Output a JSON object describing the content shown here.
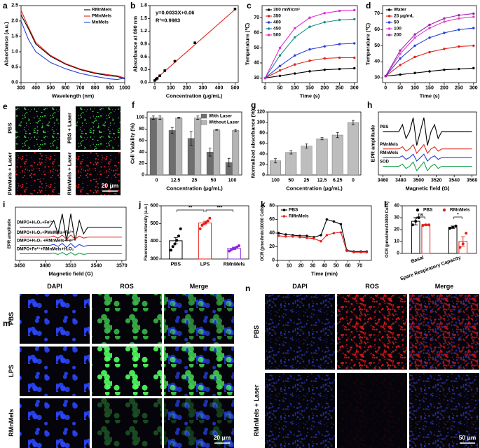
{
  "chart_data": [
    {
      "label": "a",
      "type": "line",
      "xlabel": "Wavelength (nm)",
      "ylabel": "Absorbance (a.u.)",
      "x": [
        300,
        350,
        400,
        500,
        600,
        700,
        800,
        900,
        950,
        1000
      ],
      "xlim": [
        300,
        1000
      ],
      "xticks": [
        300,
        400,
        500,
        600,
        700,
        800,
        900,
        1000
      ],
      "ylim": [
        0,
        2.5
      ],
      "yticks": [
        {
          "value": 0,
          "label": "0.0"
        },
        {
          "value": 0.5,
          "label": "0.5"
        },
        {
          "value": 1,
          "label": "1.0"
        },
        {
          "value": 1.5,
          "label": "1.5"
        },
        {
          "value": 2,
          "label": "2.0"
        },
        {
          "value": 2.5,
          "label": "2.5"
        }
      ],
      "legend": "upper right",
      "series": [
        {
          "name": "RMnMels",
          "color": "#000000",
          "values": [
            2.2,
            1.75,
            1.25,
            0.85,
            0.6,
            0.42,
            0.3,
            0.22,
            0.2,
            0.12
          ]
        },
        {
          "name": "PMnMels",
          "color": "#e32119",
          "values": [
            2.35,
            1.8,
            1.3,
            0.88,
            0.62,
            0.44,
            0.32,
            0.25,
            0.22,
            0.15
          ]
        },
        {
          "name": "MnMels",
          "color": "#2b3fd6",
          "values": [
            2.0,
            1.4,
            1.0,
            0.65,
            0.45,
            0.3,
            0.2,
            0.12,
            0.1,
            0.15
          ]
        }
      ]
    },
    {
      "label": "b",
      "type": "scatter",
      "xlabel": "Concentration (μg/mL)",
      "ylabel": "Absorbance at 690 nm",
      "xlim": [
        -30,
        520
      ],
      "xticks": [
        0,
        100,
        200,
        300,
        400,
        500
      ],
      "ylim": [
        0,
        1.8
      ],
      "yticks": [
        {
          "value": 0,
          "label": "0.0"
        },
        0.3,
        0.6,
        0.9,
        1.2,
        1.5,
        1.8
      ],
      "annotations": [
        "y=0.0033X+0.06",
        "R²=0.9983"
      ],
      "series": [
        {
          "color": "#e32119",
          "mode": "line",
          "x": [
            0,
            500
          ],
          "values": [
            0.06,
            1.71
          ]
        },
        {
          "color": "#000000",
          "mode": "markers",
          "x": [
            0,
            7.8,
            15.6,
            31.25,
            62.5,
            125,
            250,
            500
          ],
          "values": [
            0.05,
            0.08,
            0.1,
            0.16,
            0.28,
            0.5,
            0.93,
            1.72
          ]
        }
      ]
    },
    {
      "label": "c",
      "type": "line",
      "markers": true,
      "xlabel": "Time (s)",
      "ylabel": "Temperature (℃)",
      "x": [
        0,
        50,
        100,
        150,
        200,
        250,
        300
      ],
      "xlim": [
        -10,
        310
      ],
      "xticks": [
        0,
        50,
        100,
        150,
        200,
        250,
        300
      ],
      "ylim": [
        27,
        78
      ],
      "yticks": [
        30,
        40,
        50,
        60,
        70
      ],
      "legend": "upper left",
      "series": [
        {
          "name": "300 mW/cm²",
          "color": "#000000",
          "values": [
            30,
            31.5,
            33,
            34.5,
            35.5,
            36,
            36.5
          ]
        },
        {
          "name": "350",
          "color": "#e32119",
          "values": [
            30,
            35,
            39,
            41.5,
            43,
            43.5,
            43.5
          ]
        },
        {
          "name": "400",
          "color": "#2b3fd6",
          "values": [
            30,
            38,
            45,
            49,
            51,
            52.5,
            53
          ]
        },
        {
          "name": "450",
          "color": "#16908c",
          "values": [
            30,
            45,
            57,
            64,
            67,
            68.5,
            69
          ]
        },
        {
          "name": "500",
          "color": "#e22ad6",
          "values": [
            30,
            50,
            63,
            70,
            73,
            74.5,
            75
          ]
        }
      ]
    },
    {
      "label": "d",
      "type": "line",
      "markers": true,
      "xlabel": "Time (s)",
      "ylabel": "Temperature (℃)",
      "x": [
        0,
        50,
        100,
        150,
        200,
        250,
        300
      ],
      "xlim": [
        -10,
        310
      ],
      "xticks": [
        0,
        50,
        100,
        150,
        200,
        250,
        300
      ],
      "ylim": [
        27,
        75
      ],
      "yticks": [
        30,
        40,
        50,
        60,
        70
      ],
      "legend": "upper left",
      "series": [
        {
          "name": "Water",
          "color": "#000000",
          "values": [
            31,
            32,
            33,
            34,
            35,
            35.5,
            36
          ]
        },
        {
          "name": "25 μg/mL",
          "color": "#e32119",
          "values": [
            31,
            38,
            43,
            46,
            48,
            49.5,
            50
          ]
        },
        {
          "name": "50",
          "color": "#2b3fd6",
          "values": [
            31,
            42,
            50,
            55,
            58,
            60,
            61
          ]
        },
        {
          "name": "100",
          "color": "#e040c8",
          "values": [
            31,
            45,
            55,
            61,
            65,
            67,
            68
          ]
        },
        {
          "name": "200",
          "color": "#a020b0",
          "values": [
            31,
            47,
            57,
            63,
            67,
            69,
            70
          ]
        }
      ]
    },
    {
      "label": "f",
      "type": "bar",
      "xlabel": "Concentration (μg/mL)",
      "ylabel": "Cell Viability (%)",
      "categories": [
        "0",
        "12.5",
        "25",
        "50",
        "100"
      ],
      "ylim": [
        0,
        110
      ],
      "yticks": [
        0,
        20,
        40,
        60,
        80,
        100
      ],
      "legend": "upper right",
      "series": [
        {
          "name": "With Laser",
          "color": "#6e6e6e",
          "values": [
            100,
            78,
            64,
            40,
            22
          ],
          "errors": [
            3,
            5,
            12,
            7,
            7
          ]
        },
        {
          "name": "Without Laser",
          "color": "#b4b4b4",
          "values": [
            100,
            100,
            100,
            79,
            78
          ],
          "errors": [
            3,
            1,
            3,
            1,
            2
          ]
        }
      ]
    },
    {
      "label": "g",
      "type": "bar",
      "xlabel": "Concentration (μg/mL)",
      "ylabel": "Normalized absorbance (%)",
      "categories": [
        "100",
        "50",
        "25",
        "12.5",
        "6.25",
        "0"
      ],
      "ylim": [
        0,
        120
      ],
      "yticks": [
        0,
        20,
        40,
        60,
        80,
        100,
        120
      ],
      "series": [
        {
          "color": "#bdbdbd",
          "values": [
            27,
            43,
            55,
            69,
            76,
            100
          ],
          "errors": [
            4,
            3,
            4,
            2,
            5,
            4
          ]
        }
      ]
    },
    {
      "label": "h",
      "type": "line",
      "legend": "inline",
      "xlabel": "Magnetic field (G)",
      "ylabel": "EPR amplitude",
      "x": [
        3460,
        3478,
        3482,
        3486,
        3490,
        3494,
        3498,
        3502,
        3506,
        3510,
        3514,
        3518,
        3522,
        3526,
        3530,
        3545,
        3560
      ],
      "xlim": [
        3455,
        3565
      ],
      "xticks": [
        3460,
        3480,
        3500,
        3520,
        3540,
        3560
      ],
      "ylim": [
        -1,
        13.5
      ],
      "series": [
        {
          "name": "PBS",
          "color": "#000000",
          "values": [
            9,
            9,
            10.6,
            7.4,
            9,
            12.2,
            5.8,
            9,
            12.2,
            5.8,
            9,
            10.6,
            7.4,
            9,
            9,
            9,
            9
          ]
        },
        {
          "name": "PMnMels",
          "color": "#e32119",
          "values": [
            5,
            5,
            5.5,
            4.5,
            5,
            6,
            4,
            5,
            6,
            4,
            5,
            5.5,
            4.5,
            5,
            5,
            5,
            5
          ]
        },
        {
          "name": "RMnMels",
          "color": "#2b3fd6",
          "values": [
            3,
            3,
            3.4,
            2.6,
            3,
            3.8,
            2.2,
            3,
            3.8,
            2.2,
            3,
            3.4,
            2.6,
            3,
            3,
            3,
            3
          ]
        },
        {
          "name": "SOD",
          "color": "#16a04a",
          "values": [
            1,
            1,
            1.5,
            0.5,
            1,
            2,
            0,
            1,
            2,
            0,
            1,
            1.5,
            0.5,
            1,
            1,
            1,
            1
          ]
        }
      ]
    },
    {
      "label": "i",
      "type": "line",
      "legend": "inline",
      "xlabel": "Magnetic field (G)",
      "ylabel": "EPR amplitude",
      "x": [
        3450,
        3485,
        3490,
        3495,
        3500,
        3505,
        3510,
        3515,
        3520,
        3525,
        3530,
        3570
      ],
      "xlim": [
        3445,
        3575
      ],
      "xticks": [
        3450,
        3480,
        3510,
        3540,
        3570
      ],
      "ylim": [
        -1,
        15
      ],
      "series": [
        {
          "name": "DMPO+H₂O₂+Fe²⁺",
          "color": "#000000",
          "values": [
            9,
            9,
            11,
            7,
            13,
            5,
            13,
            5,
            11,
            7,
            9,
            9
          ]
        },
        {
          "name": "DMPO+H₂O₂+PMnMels+Fe²⁺",
          "color": "#e32119",
          "values": [
            6,
            6,
            6.3,
            5.7,
            6.6,
            5.4,
            6.6,
            5.4,
            6.3,
            5.7,
            6,
            6
          ]
        },
        {
          "name": "DMPO+H₂O₂ +RMnMels+Fe²⁺",
          "color": "#2b3fd6",
          "values": [
            3.5,
            3.5,
            3.8,
            3.2,
            4.1,
            2.9,
            4.1,
            2.9,
            3.8,
            3.2,
            3.5,
            3.5
          ]
        },
        {
          "name": "DMPO+Fe²⁺+RMnMels+H₂O₂",
          "color": "#16a04a",
          "values": [
            1,
            1,
            1.2,
            0.8,
            1.4,
            0.6,
            1.4,
            0.6,
            1.2,
            0.8,
            1,
            1
          ]
        }
      ]
    },
    {
      "label": "j",
      "type": "dotbar",
      "ylabel": "Fluorescence intensity (a.u.)",
      "categories": [
        "PBS",
        "LPS",
        "RMnMels"
      ],
      "colors": [
        "#000000",
        "#e32119",
        "#8a2be2"
      ],
      "values": [
        403,
        503,
        360
      ],
      "errors": [
        18,
        10,
        7
      ],
      "points": [
        [
          350,
          370,
          385,
          405,
          430,
          470
        ],
        [
          470,
          490,
          500,
          505,
          515,
          530
        ],
        [
          345,
          352,
          358,
          362,
          368,
          375
        ]
      ],
      "ylim": [
        300,
        600
      ],
      "yticks": [
        300,
        400,
        500,
        600
      ],
      "significance": [
        "**",
        "***"
      ]
    },
    {
      "label": "k",
      "type": "line",
      "markers": true,
      "xlabel": "Time (min)",
      "ylabel": "OCR (pmol/min/10000 Cells)",
      "x": [
        1,
        7,
        13,
        19,
        25,
        31,
        37,
        42,
        48,
        54,
        59,
        65,
        71,
        76
      ],
      "xlim": [
        0,
        80
      ],
      "xticks": [
        0,
        10,
        20,
        30,
        40,
        50,
        60,
        70
      ],
      "ylim": [
        0,
        80
      ],
      "yticks": [
        0,
        20,
        40,
        60,
        80
      ],
      "legend": "upper left",
      "series": [
        {
          "name": "PBS",
          "color": "#000000",
          "values": [
            40,
            38,
            37,
            36,
            36,
            34,
            37,
            60,
            57,
            53,
            15,
            13,
            13,
            13
          ]
        },
        {
          "name": "RMnMels",
          "color": "#e32119",
          "values": [
            36,
            35,
            35,
            34,
            33,
            32,
            28,
            37,
            40,
            41,
            14,
            12,
            12,
            12
          ]
        }
      ]
    },
    {
      "label": "l",
      "type": "dotbar",
      "ylabel": "OCR (pmol/min/10000 Cells)",
      "categories": [
        "Basal",
        "Spare Respiratory Capacity"
      ],
      "ylim": [
        0,
        40
      ],
      "yticks": [
        0,
        10,
        20,
        30,
        40
      ],
      "legend": "upper center",
      "significance": [
        "ns",
        "*"
      ],
      "series": [
        {
          "name": "PBS",
          "color": "#000000",
          "values": [
            27,
            22
          ],
          "errors": [
            3,
            1
          ],
          "points": [
            [
              24,
              27,
              30
            ],
            [
              21,
              22,
              23
            ]
          ]
        },
        {
          "name": "RMnMels",
          "color": "#e32119",
          "values": [
            24,
            10
          ],
          "errors": [
            0.5,
            4
          ],
          "points": [
            [
              23.5,
              24,
              24
            ],
            [
              5,
              8,
              17
            ]
          ]
        }
      ]
    }
  ],
  "image_panels": [
    {
      "label": "e",
      "tiles": [
        "PBS",
        "PBS + Laser",
        "PMnMels + Laser",
        "RMnMels + Laser"
      ],
      "scale_bar": "20 μm"
    },
    {
      "label": "m",
      "columns": [
        "DAPI",
        "ROS",
        "Merge"
      ],
      "rows": [
        "PBS",
        "LPS",
        "RMnMels"
      ],
      "scale_bar": "20 μm"
    },
    {
      "label": "n",
      "columns": [
        "DAPI",
        "ROS",
        "Merge"
      ],
      "rows": [
        "PBS",
        "RMnMels + Laser"
      ],
      "scale_bar": "50 μm"
    }
  ]
}
